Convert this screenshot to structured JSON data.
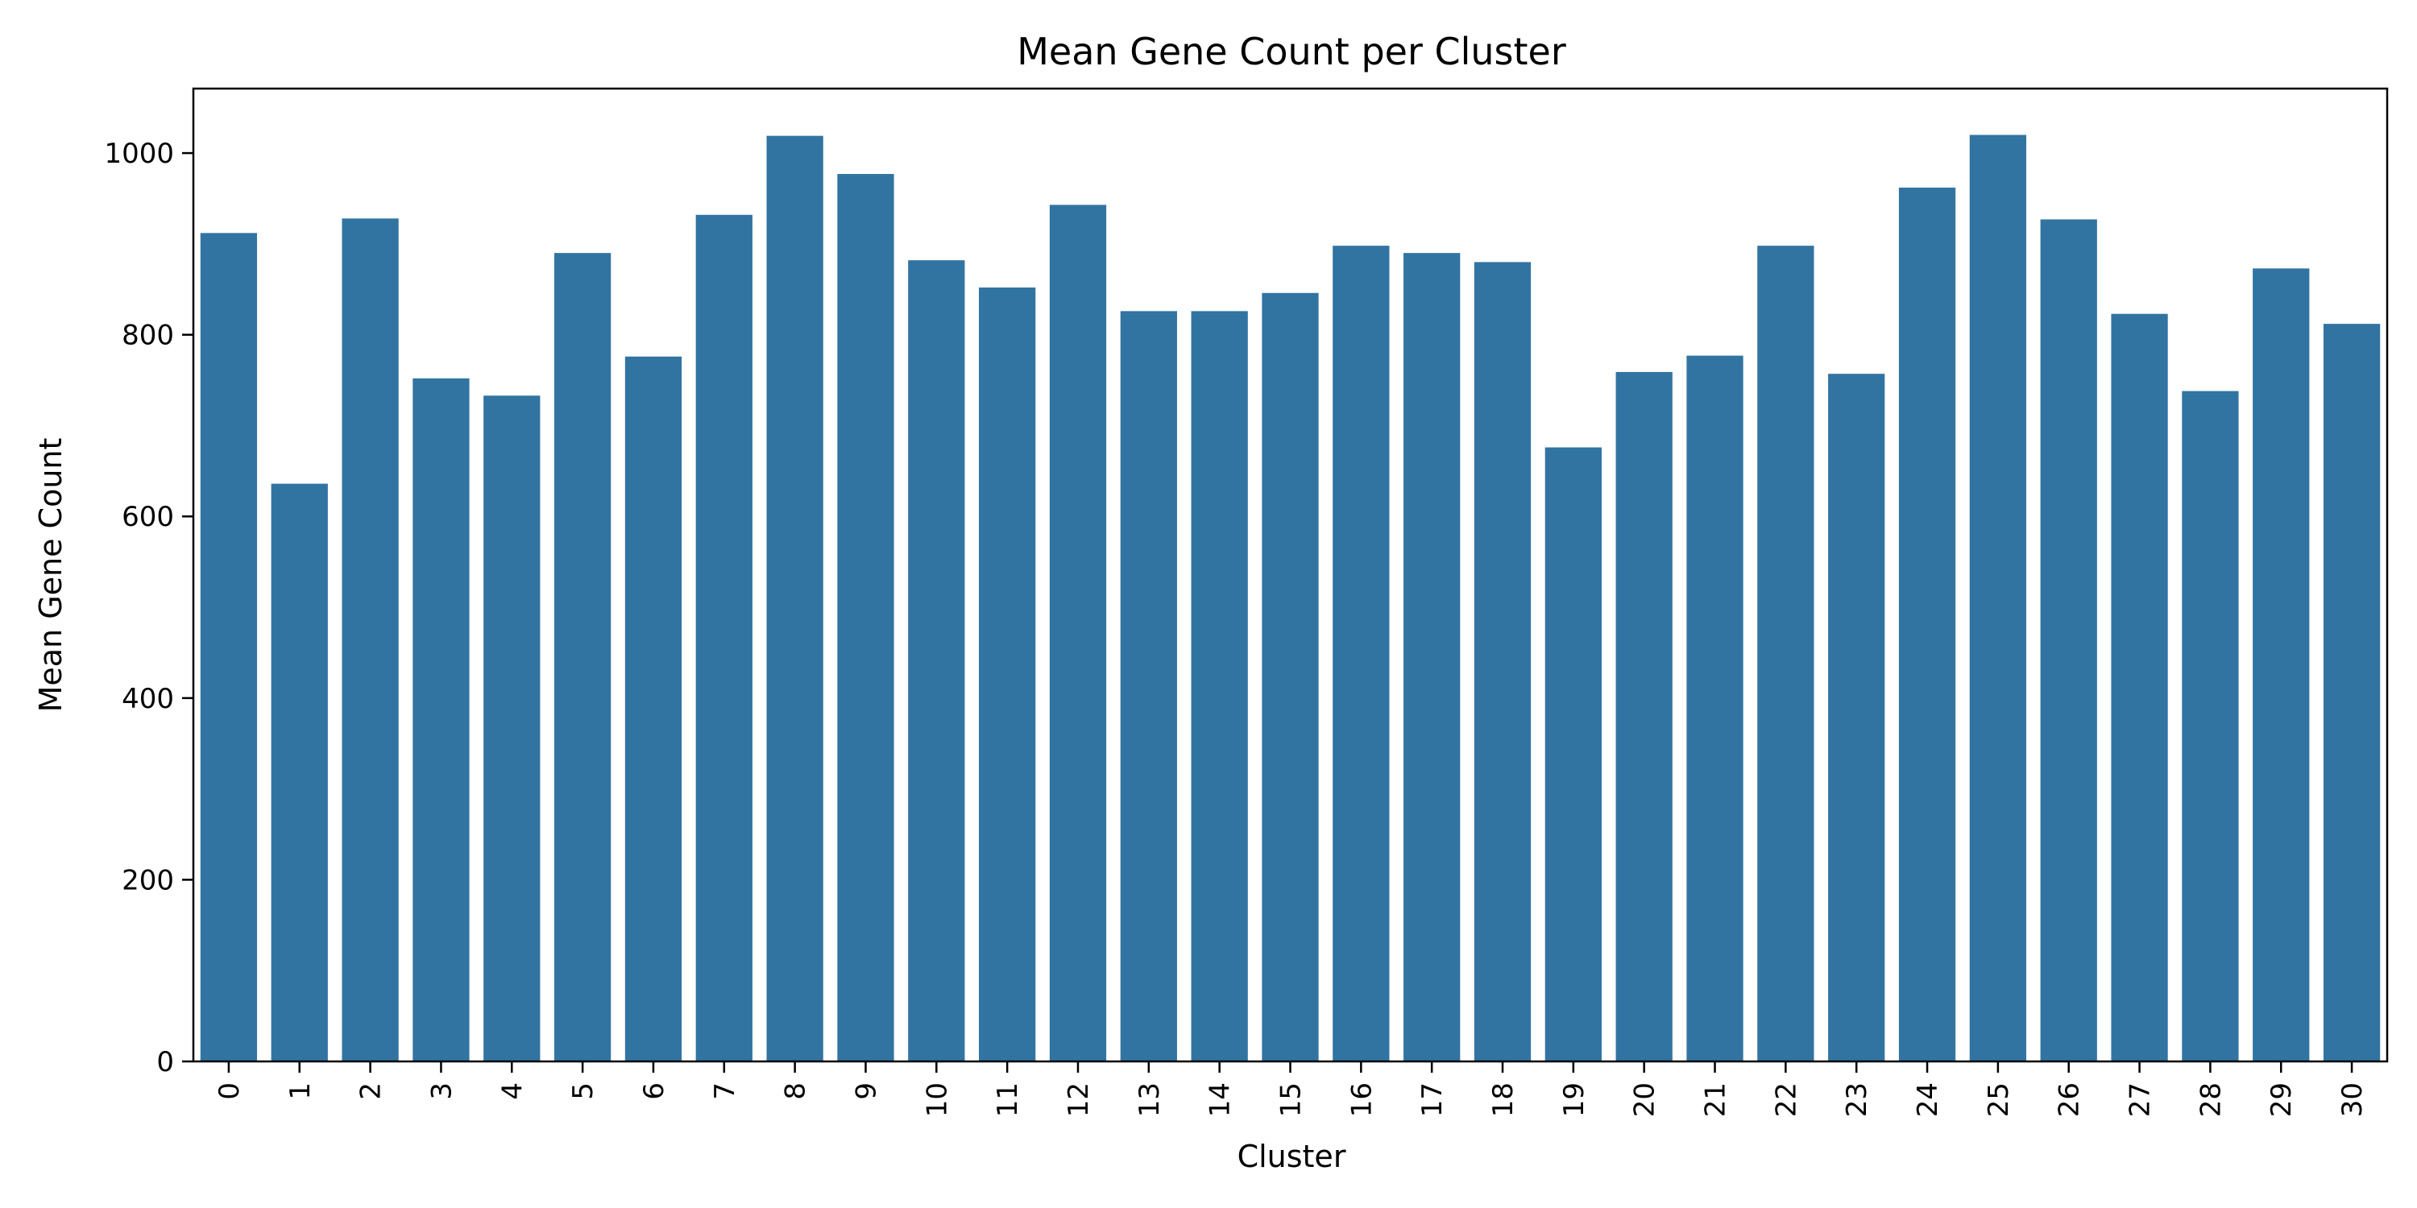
{
  "chart_data": {
    "type": "bar",
    "title": "Mean Gene Count per Cluster",
    "xlabel": "Cluster",
    "ylabel": "Mean Gene Count",
    "categories": [
      "0",
      "1",
      "2",
      "3",
      "4",
      "5",
      "6",
      "7",
      "8",
      "9",
      "10",
      "11",
      "12",
      "13",
      "14",
      "15",
      "16",
      "17",
      "18",
      "19",
      "20",
      "21",
      "22",
      "23",
      "24",
      "25",
      "26",
      "27",
      "28",
      "29",
      "30"
    ],
    "values": [
      912,
      636,
      928,
      752,
      733,
      890,
      776,
      932,
      1019,
      977,
      882,
      852,
      943,
      826,
      826,
      846,
      898,
      890,
      880,
      676,
      759,
      777,
      898,
      757,
      962,
      1020,
      927,
      823,
      738,
      873,
      812
    ],
    "ylim": [
      0,
      1071
    ],
    "yticks": [
      0,
      200,
      400,
      600,
      800,
      1000
    ],
    "bar_color": "#3274a1",
    "grid": false,
    "legend": "none"
  }
}
